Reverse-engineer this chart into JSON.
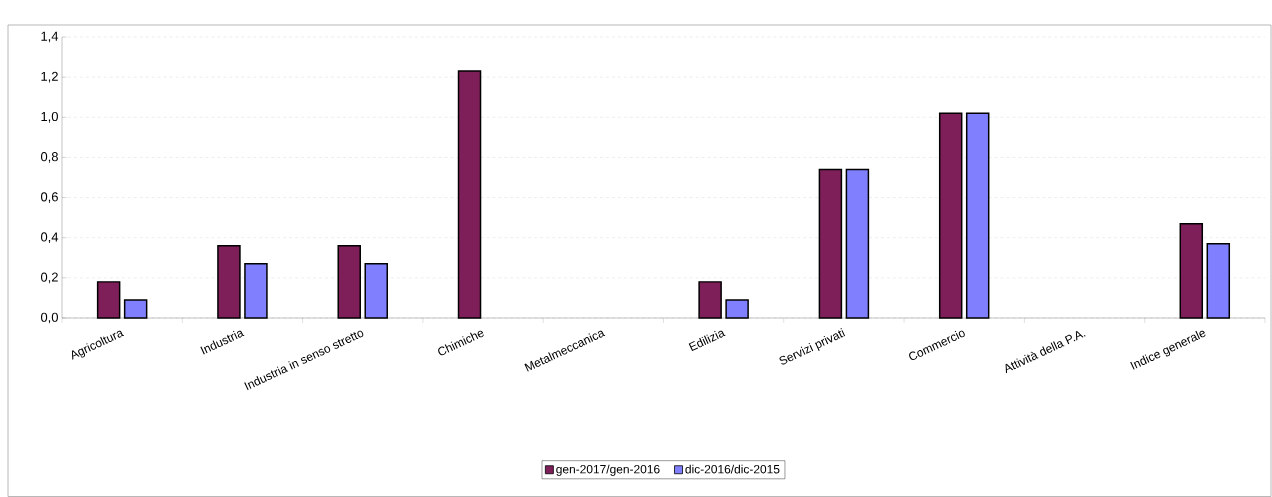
{
  "chart_data": {
    "type": "bar",
    "categories": [
      "Agricoltura",
      "Industria",
      "Industria in senso stretto",
      "Chimiche",
      "Metalmeccanica",
      "Edilizia",
      "Servizi privati",
      "Commercio",
      "Attività della P.A.",
      "Indice generale"
    ],
    "series": [
      {
        "name": "gen-2017/gen-2016",
        "color": "#7f1f5a",
        "values": [
          0.18,
          0.36,
          0.36,
          1.23,
          null,
          0.18,
          0.74,
          1.02,
          null,
          0.47
        ]
      },
      {
        "name": "dic-2016/dic-2015",
        "color": "#8080ff",
        "values": [
          0.09,
          0.27,
          0.27,
          null,
          null,
          0.09,
          0.74,
          1.02,
          null,
          0.37
        ]
      }
    ],
    "ylim": [
      0,
      1.4
    ],
    "yticks": [
      {
        "value": 0,
        "label": "0,0"
      },
      {
        "value": 0.2,
        "label": "0,2"
      },
      {
        "value": 0.4,
        "label": "0,4"
      },
      {
        "value": 0.6,
        "label": "0,6"
      },
      {
        "value": 0.8,
        "label": "0,8"
      },
      {
        "value": 1.0,
        "label": "1,0"
      },
      {
        "value": 1.2,
        "label": "1,2"
      },
      {
        "value": 1.4,
        "label": "1,4"
      }
    ],
    "grid": "y",
    "legend": "bottom"
  }
}
